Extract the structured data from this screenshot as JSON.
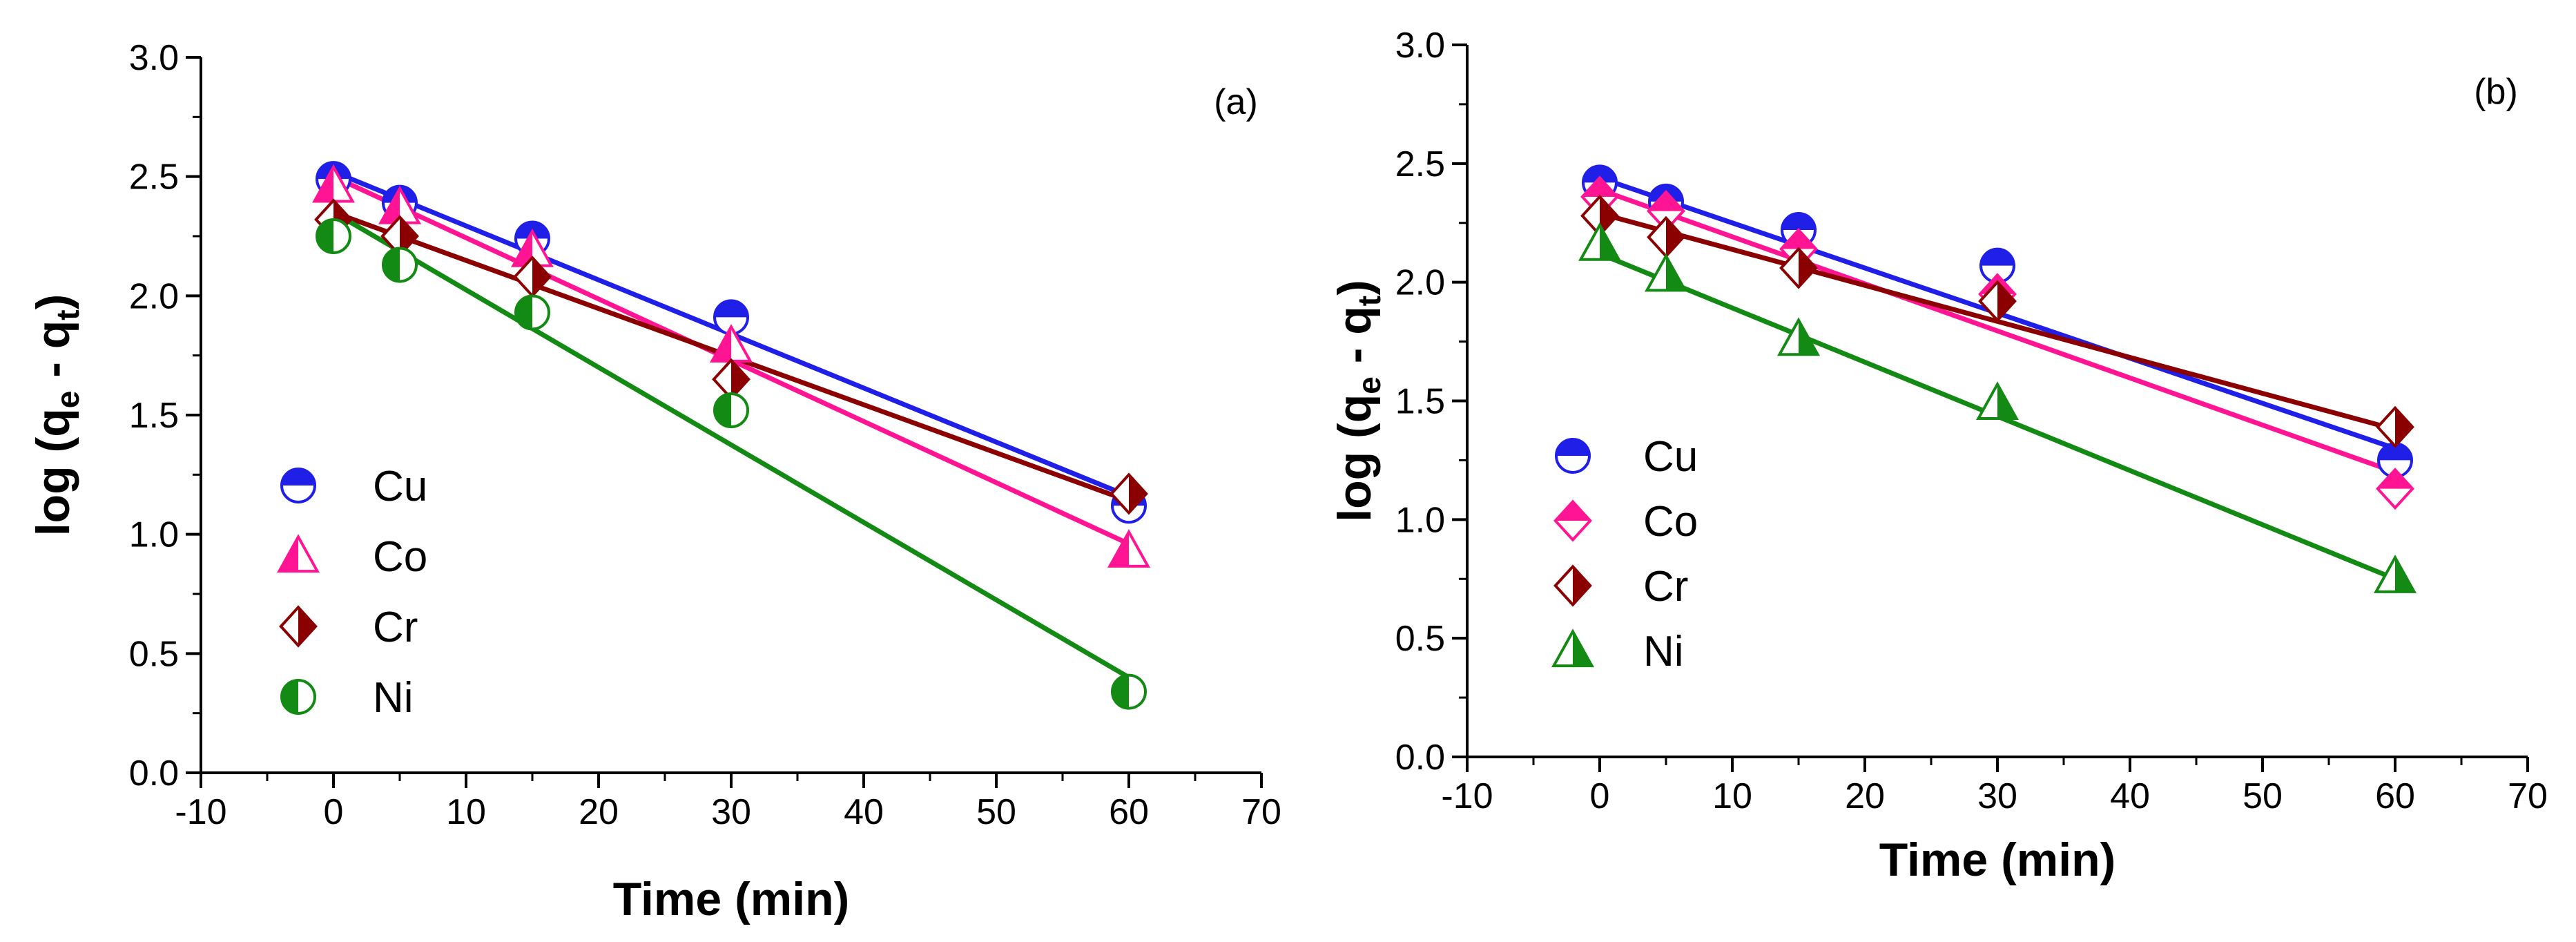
{
  "chart_data": [
    {
      "type": "scatter",
      "panel_label": "(a)",
      "title": "",
      "xlabel": "Time (min)",
      "ylabel_main": "log (q",
      "ylabel_sub1": "e",
      "ylabel_mid": " - q",
      "ylabel_sub2": "t",
      "ylabel_end": ")",
      "xlim": [
        -10,
        70
      ],
      "ylim": [
        0.0,
        3.0
      ],
      "x_ticks": [
        "-10",
        "0",
        "10",
        "20",
        "30",
        "40",
        "50",
        "60",
        "70"
      ],
      "y_ticks": [
        "0.0",
        "0.5",
        "1.0",
        "1.5",
        "2.0",
        "2.5",
        "3.0"
      ],
      "legend_position": "left-bottom",
      "series": [
        {
          "name": "Cu",
          "color": "#1f1fe8",
          "marker": "circle-top",
          "x": [
            0,
            5,
            15,
            30,
            60
          ],
          "y": [
            2.49,
            2.39,
            2.24,
            1.91,
            1.12
          ],
          "fit": [
            2.52,
            1.16
          ]
        },
        {
          "name": "Co",
          "color": "#ff1493",
          "marker": "triangle-left",
          "x": [
            0,
            5,
            15,
            30,
            60
          ],
          "y": [
            2.46,
            2.37,
            2.19,
            1.79,
            0.93
          ],
          "fit": [
            2.5,
            0.96
          ]
        },
        {
          "name": "Cr",
          "color": "#8b0000",
          "marker": "diamond-right",
          "x": [
            0,
            5,
            15,
            30,
            60
          ],
          "y": [
            2.32,
            2.25,
            2.08,
            1.65,
            1.17
          ],
          "fit": [
            2.35,
            1.14
          ]
        },
        {
          "name": "Ni",
          "color": "#138a13",
          "marker": "circle-left",
          "x": [
            0,
            5,
            15,
            30,
            60
          ],
          "y": [
            2.25,
            2.13,
            1.93,
            1.52,
            0.34
          ],
          "fit": [
            2.35,
            0.4
          ]
        }
      ]
    },
    {
      "type": "scatter",
      "panel_label": "(b)",
      "title": "",
      "xlabel": "Time (min)",
      "ylabel_main": "log (q",
      "ylabel_sub1": "e",
      "ylabel_mid": " - q",
      "ylabel_sub2": "t",
      "ylabel_end": ")",
      "xlim": [
        -10,
        70
      ],
      "ylim": [
        0.0,
        3.0
      ],
      "x_ticks": [
        "-10",
        "0",
        "10",
        "20",
        "30",
        "40",
        "50",
        "60",
        "70"
      ],
      "y_ticks": [
        "0.0",
        "0.5",
        "1.0",
        "1.5",
        "2.0",
        "2.5",
        "3.0"
      ],
      "legend_position": "left-middle",
      "series": [
        {
          "name": "Cu",
          "color": "#1f1fe8",
          "marker": "circle-top",
          "x": [
            0,
            5,
            15,
            30,
            60
          ],
          "y": [
            2.42,
            2.34,
            2.22,
            2.07,
            1.25
          ],
          "fit": [
            2.44,
            1.3
          ]
        },
        {
          "name": "Co",
          "color": "#ff1493",
          "marker": "diamond-top",
          "x": [
            0,
            5,
            15,
            30,
            60
          ],
          "y": [
            2.36,
            2.3,
            2.14,
            1.95,
            1.13
          ],
          "fit": [
            2.39,
            1.2
          ]
        },
        {
          "name": "Cr",
          "color": "#8b0000",
          "marker": "diamond-right",
          "x": [
            0,
            5,
            15,
            30,
            60
          ],
          "y": [
            2.28,
            2.19,
            2.06,
            1.92,
            1.39
          ],
          "fit": [
            2.29,
            1.38
          ]
        },
        {
          "name": "Ni",
          "color": "#138a13",
          "marker": "triangle-right",
          "x": [
            0,
            5,
            15,
            30,
            60
          ],
          "y": [
            2.16,
            2.03,
            1.76,
            1.49,
            0.76
          ],
          "fit": [
            2.12,
            0.75
          ]
        }
      ]
    }
  ]
}
